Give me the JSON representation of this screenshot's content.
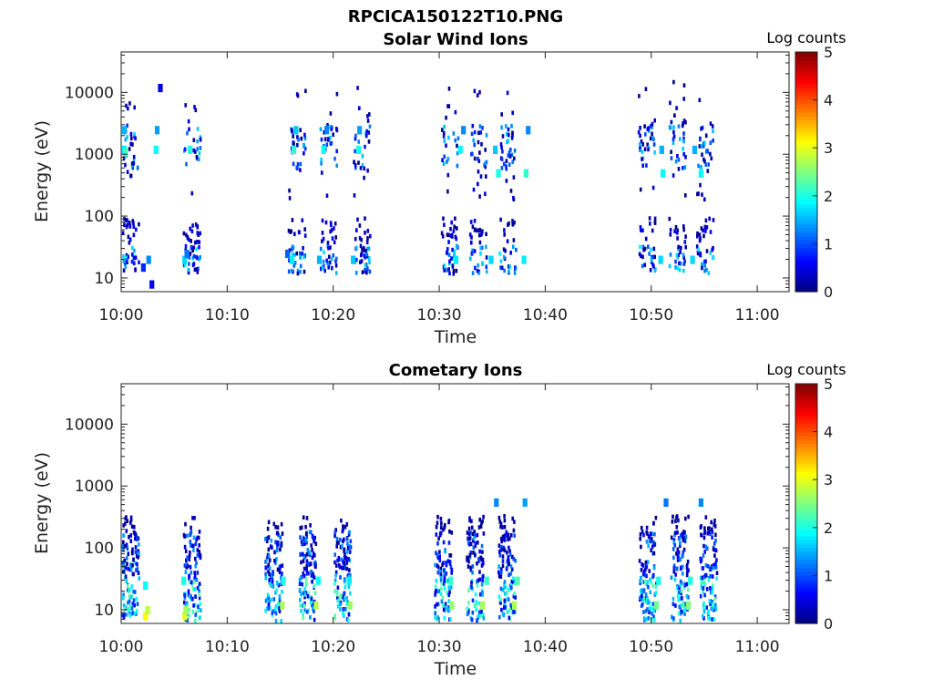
{
  "figure_title": "RPCICA150122T10.PNG",
  "chart_data": [
    {
      "type": "heatmap",
      "title": "Solar Wind Ions",
      "xlabel": "Time",
      "ylabel": "Energy (eV)",
      "x_ticks": [
        "10:00",
        "10:10",
        "10:20",
        "10:30",
        "10:40",
        "10:50",
        "11:00"
      ],
      "xlim": [
        "10:00",
        "11:03"
      ],
      "y_scale": "log",
      "y_ticks": [
        10,
        100,
        1000,
        10000
      ],
      "ylim": [
        6,
        45000
      ],
      "colorbar": {
        "label": "Log counts",
        "ticks": [
          0,
          1,
          2,
          3,
          4,
          5
        ],
        "range": [
          0,
          5
        ],
        "colormap": "jet"
      },
      "bursts_start_minutes": [
        0.0,
        5.8,
        15.7,
        18.7,
        21.8,
        30.1,
        32.8,
        35.6,
        48.7,
        51.6,
        54.2
      ],
      "cells": [
        {
          "t": 0.2,
          "e": 1200,
          "v": 1.8
        },
        {
          "t": 0.2,
          "e": 2500,
          "v": 1.5
        },
        {
          "t": 0.3,
          "e": 1100,
          "v": 2.2
        },
        {
          "t": 2.0,
          "e": 15,
          "v": 0.8
        },
        {
          "t": 2.5,
          "e": 20,
          "v": 1.3
        },
        {
          "t": 2.8,
          "e": 8,
          "v": 0.6
        },
        {
          "t": 3.2,
          "e": 1200,
          "v": 1.9
        },
        {
          "t": 3.3,
          "e": 2500,
          "v": 1.4
        },
        {
          "t": 3.6,
          "e": 12000,
          "v": 0.5
        },
        {
          "t": 5.9,
          "e": 20,
          "v": 1.7
        },
        {
          "t": 6.1,
          "e": 25,
          "v": 1.2
        },
        {
          "t": 6.4,
          "e": 1200,
          "v": 2.0
        },
        {
          "t": 15.6,
          "e": 25,
          "v": 1.1
        },
        {
          "t": 16.0,
          "e": 20,
          "v": 1.8
        },
        {
          "t": 16.2,
          "e": 1200,
          "v": 2.1
        },
        {
          "t": 16.4,
          "e": 2500,
          "v": 1.6
        },
        {
          "t": 18.6,
          "e": 20,
          "v": 1.5
        },
        {
          "t": 19.0,
          "e": 1200,
          "v": 1.9
        },
        {
          "t": 19.3,
          "e": 2500,
          "v": 1.3
        },
        {
          "t": 21.8,
          "e": 20,
          "v": 1.6
        },
        {
          "t": 22.3,
          "e": 1200,
          "v": 2.0
        },
        {
          "t": 22.4,
          "e": 2500,
          "v": 1.4
        },
        {
          "t": 31.5,
          "e": 20,
          "v": 1.8
        },
        {
          "t": 31.9,
          "e": 1200,
          "v": 1.9
        },
        {
          "t": 32.2,
          "e": 2500,
          "v": 1.3
        },
        {
          "t": 34.8,
          "e": 20,
          "v": 1.7
        },
        {
          "t": 35.5,
          "e": 500,
          "v": 2.0
        },
        {
          "t": 35.2,
          "e": 1200,
          "v": 1.6
        },
        {
          "t": 37.9,
          "e": 20,
          "v": 1.8
        },
        {
          "t": 38.1,
          "e": 500,
          "v": 2.1
        },
        {
          "t": 38.3,
          "e": 2500,
          "v": 1.3
        },
        {
          "t": 50.8,
          "e": 20,
          "v": 1.7
        },
        {
          "t": 51.0,
          "e": 500,
          "v": 1.9
        },
        {
          "t": 50.9,
          "e": 1200,
          "v": 1.5
        },
        {
          "t": 53.8,
          "e": 20,
          "v": 1.7
        },
        {
          "t": 54.6,
          "e": 500,
          "v": 1.9
        },
        {
          "t": 54.0,
          "e": 1200,
          "v": 1.5
        }
      ]
    },
    {
      "type": "heatmap",
      "title": "Cometary Ions",
      "xlabel": "Time",
      "ylabel": "Energy (eV)",
      "x_ticks": [
        "10:00",
        "10:10",
        "10:20",
        "10:30",
        "10:40",
        "10:50",
        "11:00"
      ],
      "xlim": [
        "10:00",
        "11:03"
      ],
      "y_scale": "log",
      "y_ticks": [
        10,
        100,
        1000,
        10000
      ],
      "ylim": [
        6,
        45000
      ],
      "colorbar": {
        "label": "Log counts",
        "ticks": [
          0,
          1,
          2,
          3,
          4,
          5
        ],
        "range": [
          0,
          5
        ],
        "colormap": "jet"
      },
      "bursts_start_minutes": [
        0.0,
        5.8,
        13.5,
        16.7,
        20.0,
        29.5,
        32.5,
        35.5,
        48.8,
        51.8,
        54.5
      ],
      "cells": [
        {
          "t": 2.2,
          "e": 8,
          "v": 3.1
        },
        {
          "t": 2.4,
          "e": 10,
          "v": 2.8
        },
        {
          "t": 2.2,
          "e": 25,
          "v": 1.9
        },
        {
          "t": 5.9,
          "e": 8,
          "v": 3.0
        },
        {
          "t": 6.0,
          "e": 10,
          "v": 2.7
        },
        {
          "t": 5.8,
          "e": 30,
          "v": 2.0
        },
        {
          "t": 15.1,
          "e": 12,
          "v": 2.7
        },
        {
          "t": 15.2,
          "e": 30,
          "v": 2.0
        },
        {
          "t": 18.3,
          "e": 12,
          "v": 2.8
        },
        {
          "t": 18.5,
          "e": 30,
          "v": 1.9
        },
        {
          "t": 21.5,
          "e": 12,
          "v": 2.6
        },
        {
          "t": 21.4,
          "e": 30,
          "v": 1.8
        },
        {
          "t": 31.1,
          "e": 12,
          "v": 2.6
        },
        {
          "t": 31.0,
          "e": 30,
          "v": 2.1
        },
        {
          "t": 34.0,
          "e": 12,
          "v": 2.7
        },
        {
          "t": 34.4,
          "e": 30,
          "v": 2.2
        },
        {
          "t": 37.0,
          "e": 12,
          "v": 2.7
        },
        {
          "t": 37.3,
          "e": 30,
          "v": 2.3
        },
        {
          "t": 50.4,
          "e": 12,
          "v": 2.4
        },
        {
          "t": 50.6,
          "e": 30,
          "v": 2.0
        },
        {
          "t": 53.4,
          "e": 12,
          "v": 2.5
        },
        {
          "t": 53.6,
          "e": 30,
          "v": 2.0
        },
        {
          "t": 35.3,
          "e": 550,
          "v": 1.3
        },
        {
          "t": 38.0,
          "e": 550,
          "v": 1.4
        },
        {
          "t": 51.3,
          "e": 550,
          "v": 1.2
        },
        {
          "t": 54.6,
          "e": 550,
          "v": 1.3
        }
      ]
    }
  ]
}
